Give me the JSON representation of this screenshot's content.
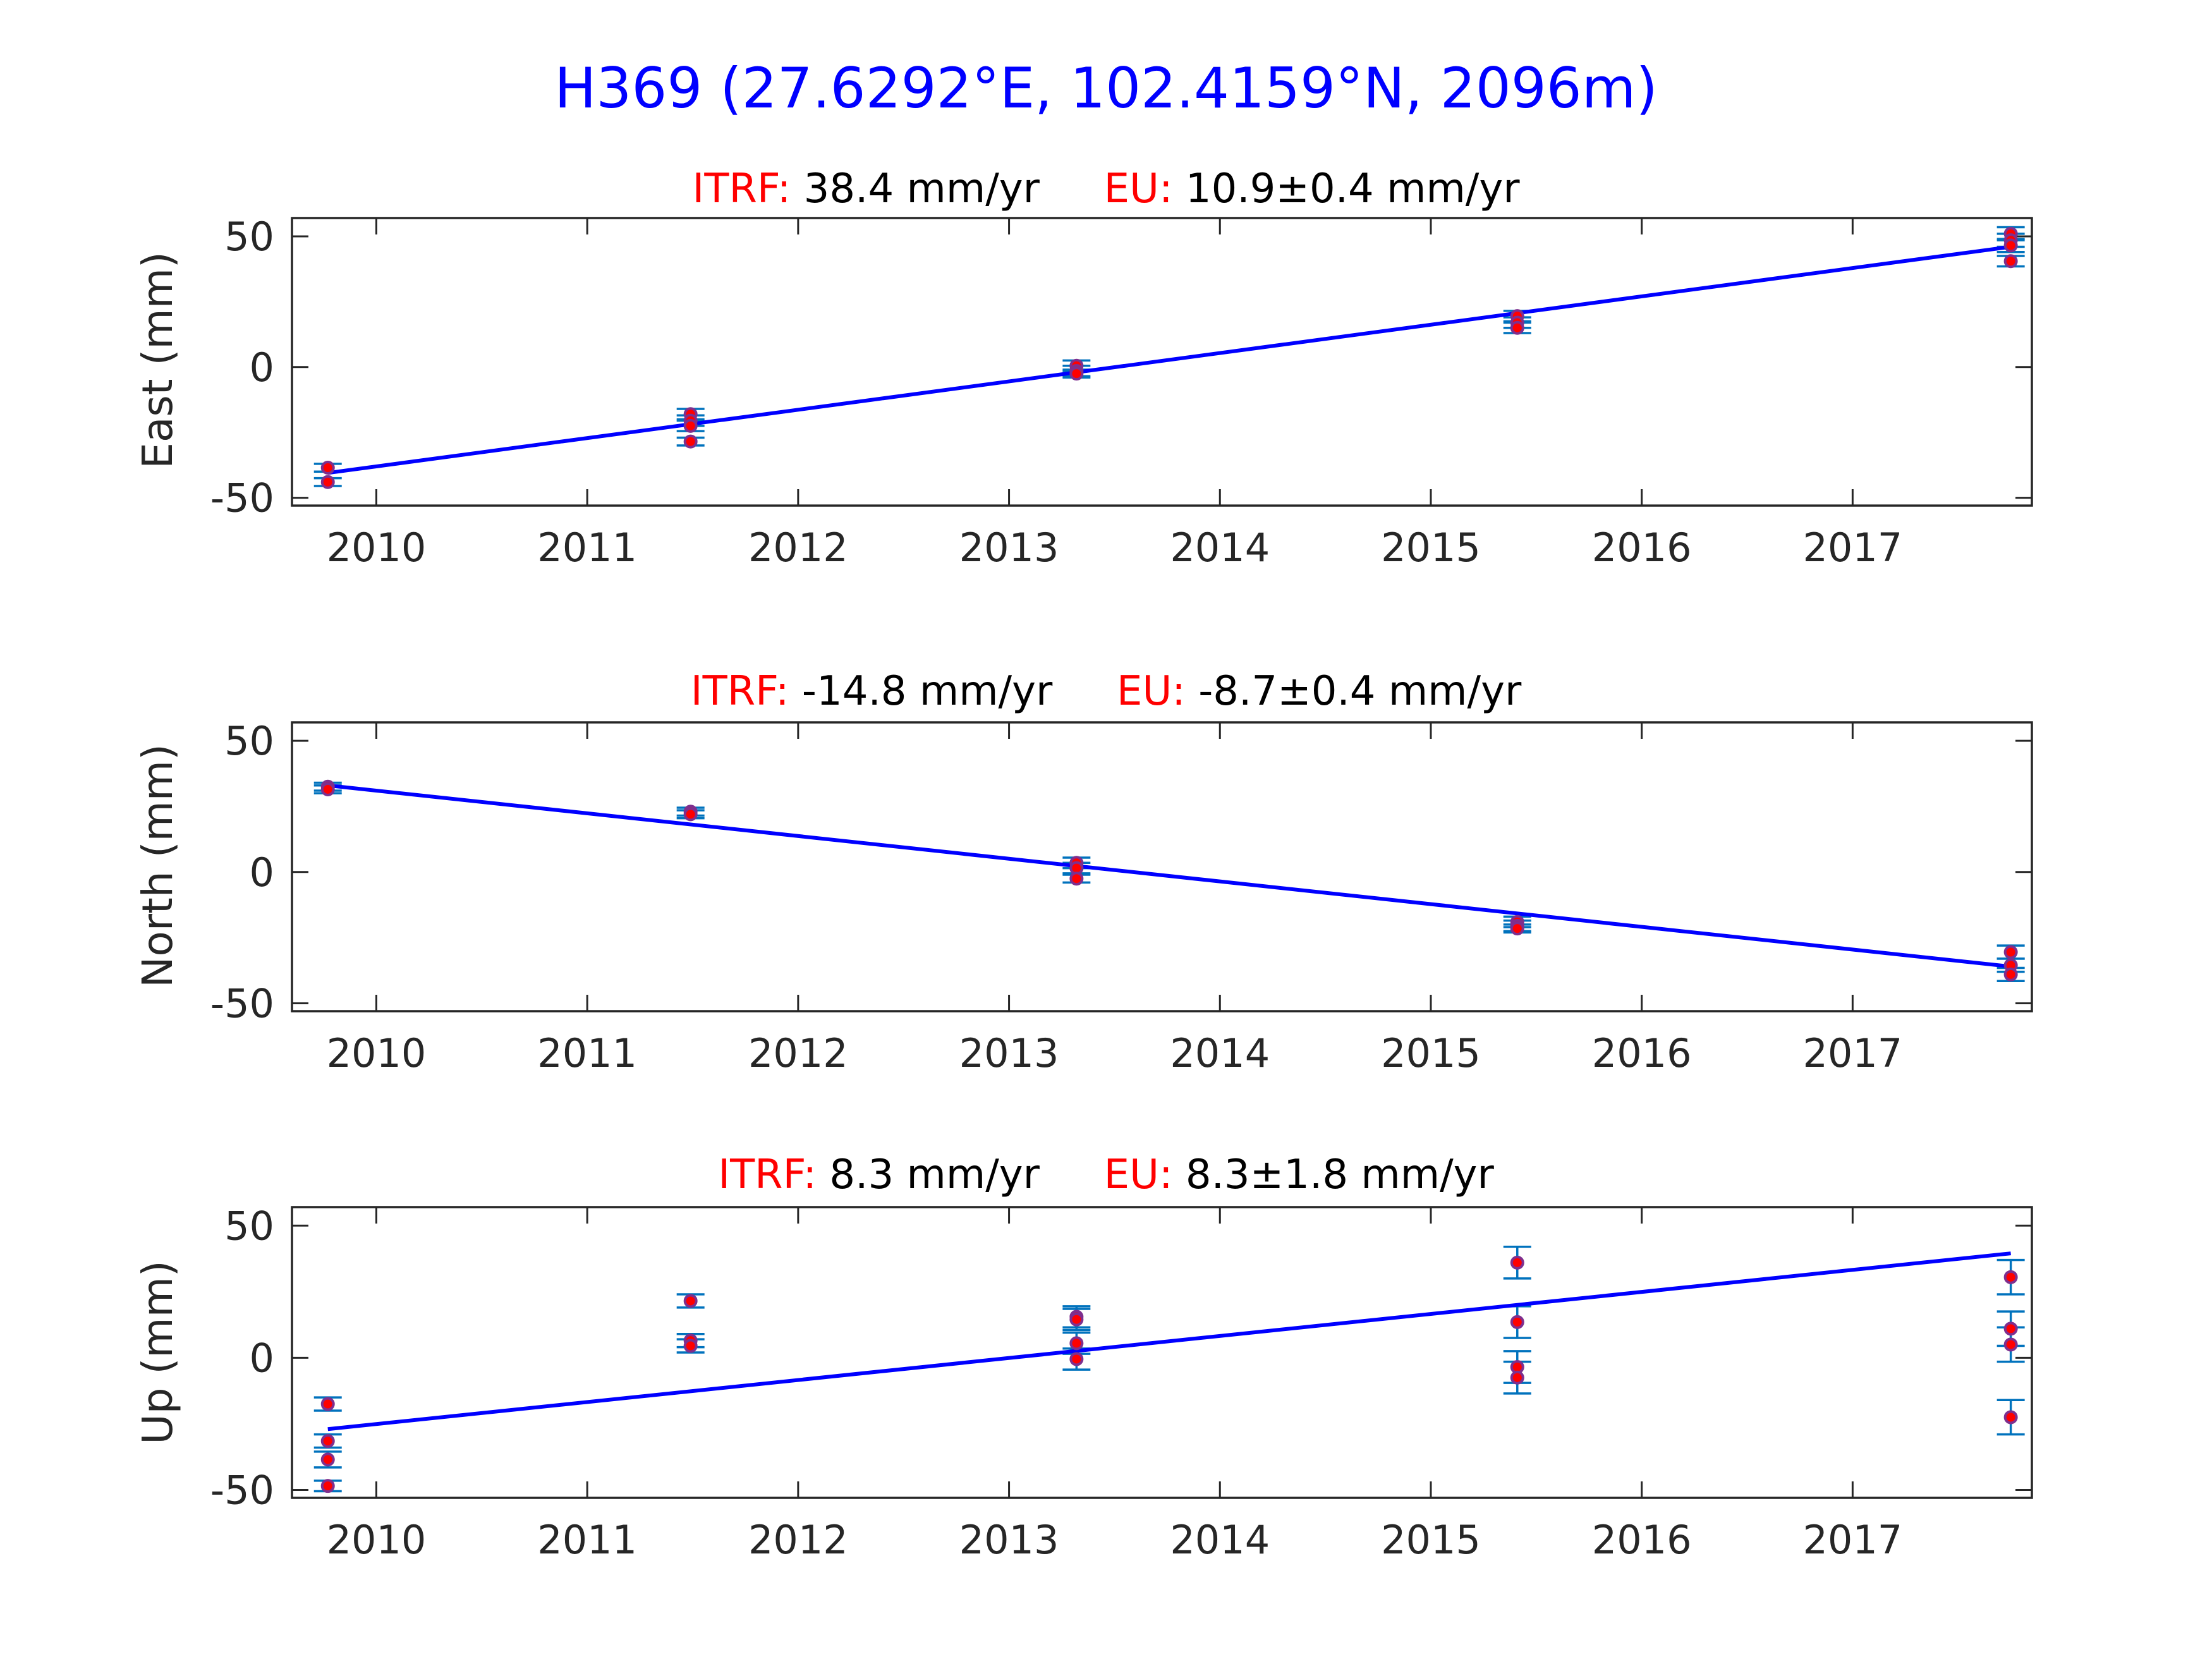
{
  "title": "H369 (27.6292°E, 102.4159°N, 2096m)",
  "colors": {
    "title": "#0000ff",
    "label": "#ff0000",
    "fit": "#0000ff",
    "errorbar": "#0072bd",
    "marker_face": "#ff0000",
    "marker_edge": "#7e2f8e"
  },
  "chart_data": [
    {
      "type": "scatter",
      "subtitle": {
        "itrf_label": "ITRF:",
        "itrf_value": "38.4 mm/yr",
        "eu_label": "EU:",
        "eu_value": "10.9±0.4 mm/yr"
      },
      "ylabel": "East (mm)",
      "xlim": [
        2009.6,
        2017.85
      ],
      "ylim": [
        -53,
        57
      ],
      "xticks": [
        2010,
        2011,
        2012,
        2013,
        2014,
        2015,
        2016,
        2017
      ],
      "yticks": [
        -50,
        0,
        50
      ],
      "grid": false,
      "points": [
        {
          "x": 2009.77,
          "y": -38.5,
          "err": 1.5
        },
        {
          "x": 2009.77,
          "y": -44,
          "err": 1.5
        },
        {
          "x": 2011.49,
          "y": -18,
          "err": 2
        },
        {
          "x": 2011.49,
          "y": -20.5,
          "err": 2
        },
        {
          "x": 2011.49,
          "y": -22.5,
          "err": 2
        },
        {
          "x": 2011.49,
          "y": -28.5,
          "err": 1.5
        },
        {
          "x": 2013.32,
          "y": 0.5,
          "err": 2
        },
        {
          "x": 2013.32,
          "y": -1.5,
          "err": 2
        },
        {
          "x": 2013.32,
          "y": -2.5,
          "err": 1.5
        },
        {
          "x": 2015.41,
          "y": 19.5,
          "err": 2
        },
        {
          "x": 2015.41,
          "y": 17,
          "err": 2
        },
        {
          "x": 2015.41,
          "y": 15,
          "err": 2
        },
        {
          "x": 2017.75,
          "y": 51,
          "err": 2.5
        },
        {
          "x": 2017.75,
          "y": 48.5,
          "err": 2.5
        },
        {
          "x": 2017.75,
          "y": 46.5,
          "err": 2.5
        },
        {
          "x": 2017.75,
          "y": 40.5,
          "err": 2
        }
      ],
      "fit": {
        "x": [
          2009.77,
          2017.75
        ],
        "y": [
          -40.5,
          46
        ]
      }
    },
    {
      "type": "scatter",
      "subtitle": {
        "itrf_label": "ITRF:",
        "itrf_value": "-14.8 mm/yr",
        "eu_label": "EU:",
        "eu_value": "-8.7±0.4 mm/yr"
      },
      "ylabel": "North (mm)",
      "xlim": [
        2009.6,
        2017.85
      ],
      "ylim": [
        -53,
        57
      ],
      "xticks": [
        2010,
        2011,
        2012,
        2013,
        2014,
        2015,
        2016,
        2017
      ],
      "yticks": [
        -50,
        0,
        50
      ],
      "grid": false,
      "points": [
        {
          "x": 2009.77,
          "y": 32.5,
          "err": 1.5
        },
        {
          "x": 2009.77,
          "y": 31.5,
          "err": 1.5
        },
        {
          "x": 2011.49,
          "y": 23,
          "err": 1.5
        },
        {
          "x": 2011.49,
          "y": 22,
          "err": 1.5
        },
        {
          "x": 2013.32,
          "y": 3.5,
          "err": 2
        },
        {
          "x": 2013.32,
          "y": 1.5,
          "err": 2
        },
        {
          "x": 2013.32,
          "y": -2.5,
          "err": 1.5
        },
        {
          "x": 2015.41,
          "y": -19,
          "err": 2
        },
        {
          "x": 2015.41,
          "y": -20.5,
          "err": 2
        },
        {
          "x": 2015.41,
          "y": -21.5,
          "err": 1.5
        },
        {
          "x": 2017.75,
          "y": -30.5,
          "err": 2.5
        },
        {
          "x": 2017.75,
          "y": -35.5,
          "err": 2.5
        },
        {
          "x": 2017.75,
          "y": -39,
          "err": 2.5
        }
      ],
      "fit": {
        "x": [
          2009.77,
          2017.75
        ],
        "y": [
          33,
          -36
        ]
      }
    },
    {
      "type": "scatter",
      "subtitle": {
        "itrf_label": "ITRF:",
        "itrf_value": "8.3 mm/yr",
        "eu_label": "EU:",
        "eu_value": "8.3±1.8 mm/yr"
      },
      "ylabel": "Up (mm)",
      "xlim": [
        2009.6,
        2017.85
      ],
      "ylim": [
        -53,
        57
      ],
      "xticks": [
        2010,
        2011,
        2012,
        2013,
        2014,
        2015,
        2016,
        2017
      ],
      "yticks": [
        -50,
        0,
        50
      ],
      "grid": false,
      "points": [
        {
          "x": 2009.77,
          "y": -17.5,
          "err": 2.5
        },
        {
          "x": 2009.77,
          "y": -31.5,
          "err": 2.5
        },
        {
          "x": 2009.77,
          "y": -38.5,
          "err": 3
        },
        {
          "x": 2009.77,
          "y": -48.5,
          "err": 2
        },
        {
          "x": 2011.49,
          "y": 21.5,
          "err": 2.5
        },
        {
          "x": 2011.49,
          "y": 6.5,
          "err": 2.5
        },
        {
          "x": 2011.49,
          "y": 4.5,
          "err": 2.5
        },
        {
          "x": 2013.32,
          "y": 15.5,
          "err": 4
        },
        {
          "x": 2013.32,
          "y": 14.5,
          "err": 4
        },
        {
          "x": 2013.32,
          "y": 5.5,
          "err": 4
        },
        {
          "x": 2013.32,
          "y": -0.5,
          "err": 4
        },
        {
          "x": 2015.41,
          "y": 36,
          "err": 6
        },
        {
          "x": 2015.41,
          "y": 13.5,
          "err": 6
        },
        {
          "x": 2015.41,
          "y": -3.5,
          "err": 6
        },
        {
          "x": 2015.41,
          "y": -7.5,
          "err": 6
        },
        {
          "x": 2017.75,
          "y": 30.5,
          "err": 6.5
        },
        {
          "x": 2017.75,
          "y": 11,
          "err": 6.5
        },
        {
          "x": 2017.75,
          "y": 5,
          "err": 6.5
        },
        {
          "x": 2017.75,
          "y": -22.5,
          "err": 6.5
        }
      ],
      "fit": {
        "x": [
          2009.77,
          2017.75
        ],
        "y": [
          -27,
          39.5
        ]
      }
    }
  ]
}
